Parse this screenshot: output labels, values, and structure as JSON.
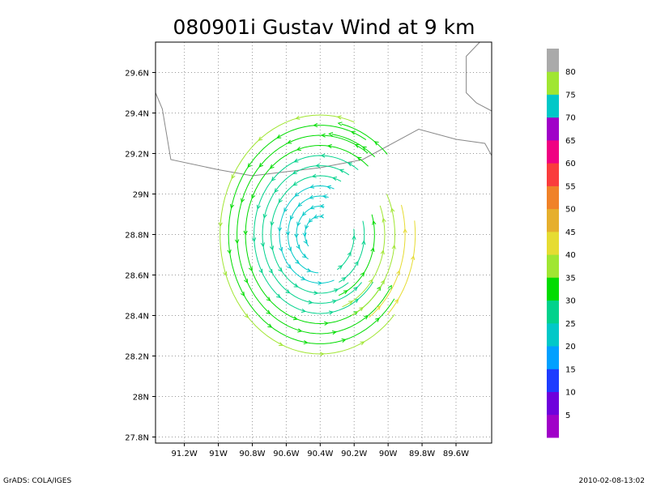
{
  "chart_data": {
    "type": "vector_field",
    "title": "080901i Gustav Wind at 9 km",
    "xlabel": "",
    "ylabel": "",
    "x_ticks": [
      "91.2W",
      "91W",
      "90.8W",
      "90.6W",
      "90.4W",
      "90.2W",
      "90W",
      "89.8W",
      "89.6W"
    ],
    "x_tick_values": [
      -91.2,
      -91.0,
      -90.8,
      -90.6,
      -90.4,
      -90.2,
      -90.0,
      -89.8,
      -89.6
    ],
    "y_ticks": [
      "29.6N",
      "29.4N",
      "29.2N",
      "29N",
      "28.8N",
      "28.6N",
      "28.4N",
      "28.2N",
      "28N",
      "27.8N"
    ],
    "y_tick_values": [
      29.6,
      29.4,
      29.2,
      29.0,
      28.8,
      28.6,
      28.4,
      28.2,
      28.0,
      27.8
    ],
    "xlim": [
      -91.37,
      -89.39
    ],
    "ylim": [
      27.77,
      29.75
    ],
    "grid": true,
    "storm_center": {
      "lon": -90.4,
      "lat": 28.8
    },
    "coastline": [
      [
        [
          -91.37,
          29.5
        ],
        [
          -91.33,
          29.42
        ],
        [
          -91.28,
          29.17
        ],
        [
          -91.0,
          29.12
        ],
        [
          -90.8,
          29.09
        ],
        [
          -90.6,
          29.11
        ],
        [
          -90.4,
          29.13
        ],
        [
          -90.15,
          29.17
        ],
        [
          -89.82,
          29.32
        ],
        [
          -89.6,
          29.27
        ],
        [
          -89.43,
          29.25
        ],
        [
          -89.39,
          29.19
        ]
      ],
      [
        [
          -89.39,
          29.41
        ],
        [
          -89.48,
          29.45
        ],
        [
          -89.54,
          29.5
        ],
        [
          -89.54,
          29.68
        ],
        [
          -89.46,
          29.75
        ],
        [
          -89.43,
          29.75
        ]
      ]
    ],
    "colorbar": {
      "labels": [
        "5",
        "10",
        "15",
        "20",
        "25",
        "30",
        "35",
        "40",
        "45",
        "50",
        "55",
        "60",
        "65",
        "70",
        "75",
        "80"
      ],
      "colors": [
        "#a000c8",
        "#6e00dc",
        "#1e3cff",
        "#00a0ff",
        "#00c8c8",
        "#00d28c",
        "#00dc00",
        "#a0e632",
        "#e6dc32",
        "#e6af2d",
        "#f08228",
        "#fa3c3c",
        "#f00082",
        "#a000c8",
        "#00c8c8",
        "#a0e632",
        "#aaaaaa"
      ]
    },
    "rings": [
      {
        "radius_deg": 0.09,
        "speed_kt": 20,
        "start_deg": 80,
        "end_deg": 220
      },
      {
        "radius_deg": 0.14,
        "speed_kt": 20,
        "start_deg": 80,
        "end_deg": 240
      },
      {
        "radius_deg": 0.19,
        "speed_kt": 22,
        "start_deg": 75,
        "end_deg": 270
      },
      {
        "radius_deg": 0.24,
        "speed_kt": 24,
        "start_deg": 70,
        "end_deg": 290
      },
      {
        "radius_deg": 0.29,
        "speed_kt": 25,
        "start_deg": 65,
        "end_deg": 305
      },
      {
        "radius_deg": 0.34,
        "speed_kt": 27,
        "start_deg": 60,
        "end_deg": 318
      },
      {
        "radius_deg": 0.39,
        "speed_kt": 29,
        "start_deg": 55,
        "end_deg": 325
      },
      {
        "radius_deg": 0.44,
        "speed_kt": 31,
        "start_deg": 50,
        "end_deg": 330
      },
      {
        "radius_deg": 0.49,
        "speed_kt": 33,
        "start_deg": 55,
        "end_deg": 330
      },
      {
        "radius_deg": 0.54,
        "speed_kt": 34,
        "start_deg": 60,
        "end_deg": 325
      },
      {
        "radius_deg": 0.59,
        "speed_kt": 35,
        "start_deg": 70,
        "end_deg": 320
      }
    ],
    "arc_segments": [
      {
        "radius_deg": 0.2,
        "speed_kt": 25,
        "start_deg": -60,
        "end_deg": 10
      },
      {
        "radius_deg": 0.26,
        "speed_kt": 28,
        "start_deg": -65,
        "end_deg": 15
      },
      {
        "radius_deg": 0.32,
        "speed_kt": 32,
        "start_deg": -70,
        "end_deg": 20
      },
      {
        "radius_deg": 0.38,
        "speed_kt": 35,
        "start_deg": -70,
        "end_deg": 25
      },
      {
        "radius_deg": 0.44,
        "speed_kt": 38,
        "start_deg": -65,
        "end_deg": 30
      },
      {
        "radius_deg": 0.5,
        "speed_kt": 40,
        "start_deg": -55,
        "end_deg": 20
      },
      {
        "radius_deg": 0.56,
        "speed_kt": 42,
        "start_deg": -45,
        "end_deg": 10
      },
      {
        "radius_deg": 0.5,
        "speed_kt": 30,
        "start_deg": 50,
        "end_deg": 85
      },
      {
        "radius_deg": 0.56,
        "speed_kt": 33,
        "start_deg": 45,
        "end_deg": 80
      }
    ]
  },
  "footer": {
    "left": "GrADS: COLA/IGES",
    "right": "2010-02-08-13:02"
  }
}
